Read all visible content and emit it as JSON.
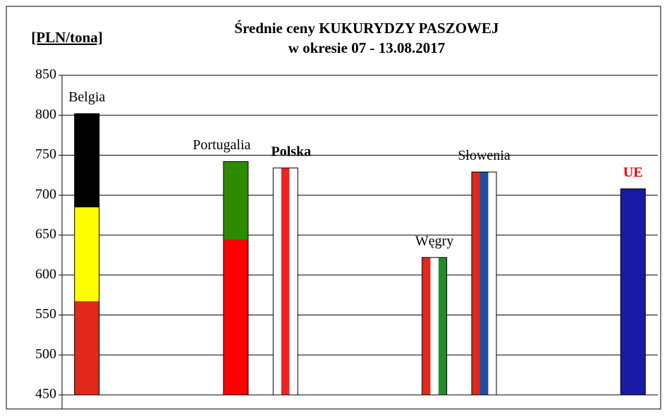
{
  "chart_data": {
    "type": "bar",
    "title": "Średnie ceny KUKURYDZY PASZOWEJ",
    "subtitle": "w okresie  07 - 13.08.2017",
    "y_label": "[PLN/tona]",
    "categories": [
      "Belgia",
      null,
      null,
      "Portugalia",
      "Polska",
      null,
      null,
      "Węgry",
      "Słowenia",
      null,
      null,
      "UE"
    ],
    "values": [
      802,
      null,
      null,
      742,
      734,
      null,
      null,
      622,
      729,
      null,
      null,
      708
    ],
    "bar_stripes": [
      {
        "dir": "h",
        "colors": [
          "#000000",
          "#ffff00",
          "#e0291b"
        ]
      },
      null,
      null,
      {
        "dir": "h",
        "colors": [
          "#2e8b00",
          "#ff0000",
          "#ff0000"
        ]
      },
      {
        "dir": "v",
        "colors": [
          "#ffffff",
          "#ee2222",
          "#ffffff"
        ]
      },
      null,
      null,
      {
        "dir": "v",
        "colors": [
          "#e0291b",
          "#ffffff",
          "#238b2a"
        ]
      },
      {
        "dir": "v",
        "colors": [
          "#e0291b",
          "#1f4e9c",
          "#ffffff"
        ]
      },
      null,
      null,
      {
        "dir": "h",
        "colors": [
          "#1a1aa6"
        ]
      }
    ],
    "ylim": [
      450,
      850
    ],
    "yticks": [
      450,
      500,
      550,
      600,
      650,
      700,
      750,
      800,
      850
    ],
    "grid": true
  }
}
